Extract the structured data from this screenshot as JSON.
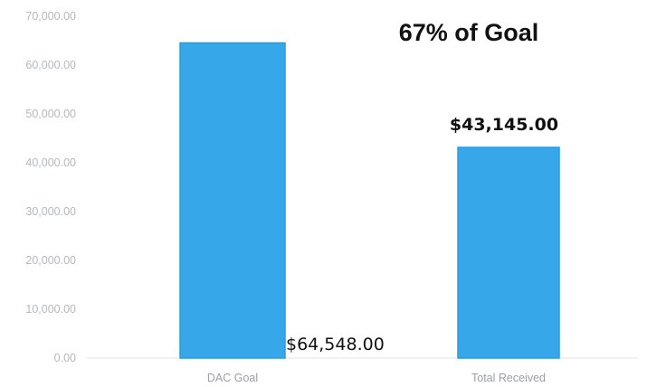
{
  "chart_data": {
    "type": "bar",
    "title": "67% of Goal",
    "categories": [
      "DAC Goal",
      "Total Received"
    ],
    "values": [
      64548,
      43145
    ],
    "data_labels": [
      "$64,548.00",
      "$43,145.00"
    ],
    "xlabel": "",
    "ylabel": "",
    "ylim": [
      0,
      70000
    ],
    "yticks": [
      0,
      10000,
      20000,
      30000,
      40000,
      50000,
      60000,
      70000
    ],
    "ytick_labels": [
      "0.00",
      "10,000.00",
      "20,000.00",
      "30,000.00",
      "40,000.00",
      "50,000.00",
      "60,000.00",
      "70,000.00"
    ],
    "grid": false,
    "legend": "none",
    "bar_color": "#36a8ea",
    "bar_edge_color": "#2a9ae0"
  }
}
